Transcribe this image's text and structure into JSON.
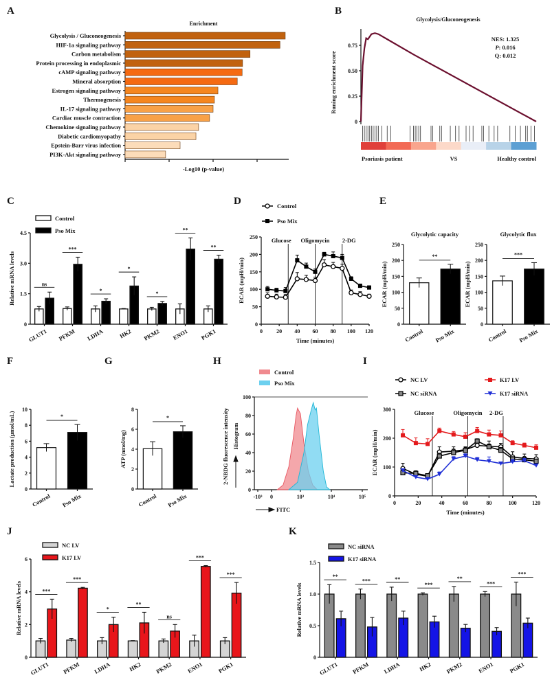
{
  "panels": [
    "A",
    "B",
    "C",
    "D",
    "E",
    "F",
    "G",
    "H",
    "I",
    "J",
    "K"
  ],
  "chart_data": [
    {
      "panel": "A",
      "type": "bar",
      "orientation": "horizontal",
      "title": "Enrichment",
      "xlabel": "-Log10 (p-value)",
      "ylabel": "",
      "categories": [
        "Glycolysis / Gluconeogenesis",
        "HIF-1a signaling pathway",
        "Carbon metabolism",
        "Protein processing in endoplasmic",
        "cAMP signaling pathway",
        "Mineral absorption",
        "Estrogen signaling pathway",
        "Thermogenesis",
        "IL-17 signaling pathway",
        "Cardiac muscle contraction",
        "Chemokine signaling pathway",
        "Diabetic cardiomyopathy",
        "Epstein-Barr virus infection",
        "PI3K-Akt signaling pathway"
      ],
      "values": [
        3.64,
        3.52,
        2.84,
        2.67,
        2.66,
        2.55,
        2.11,
        2.03,
        2.0,
        1.92,
        1.67,
        1.61,
        1.25,
        0.92
      ],
      "colors": [
        "#c1620f",
        "#c1620f",
        "#c1620f",
        "#c1620f",
        "#f56a12",
        "#f56a12",
        "#f5861f",
        "#f5861f",
        "#f8a147",
        "#f8a147",
        "#fbd3a6",
        "#fbd3a6",
        "#fcdcb9",
        "#fcdcb9"
      ],
      "xlim": [
        0,
        3.8
      ],
      "grid": false
    },
    {
      "panel": "B",
      "type": "line",
      "title": "Glycolysis/Gluconeogenesis",
      "ylabel": "Runing enrichment score",
      "yticks": [
        "0",
        "0.25",
        "0.50",
        "0.75"
      ],
      "ylim": [
        0,
        1.0
      ],
      "line_color": "#6b0f2e",
      "running_score": [
        [
          0,
          0
        ],
        [
          1,
          0.55
        ],
        [
          2,
          0.72
        ],
        [
          3,
          0.82
        ],
        [
          4,
          0.81
        ],
        [
          6,
          0.86
        ],
        [
          8,
          0.87
        ],
        [
          10,
          0.86
        ],
        [
          15,
          0.81
        ],
        [
          30,
          0.66
        ],
        [
          100,
          0
        ]
      ],
      "hit_ranks": [
        1,
        2,
        3,
        4,
        5,
        6,
        7,
        8,
        9,
        10,
        12,
        15,
        17,
        28,
        30,
        31,
        32,
        33,
        34,
        40,
        41,
        45,
        46,
        51,
        54,
        56,
        60,
        62,
        64,
        69,
        70,
        73,
        76,
        78,
        85,
        88,
        91,
        94,
        95,
        97,
        99
      ],
      "colorbar": [
        "#e0403a",
        "#f26a55",
        "#f9a58d",
        "#fcd9c9",
        "#e9eef7",
        "#b8d3e8",
        "#5c9fd3"
      ],
      "annotations": {
        "nes": "NES: 1.325",
        "p_label": "P",
        "p_value": ": 0.016",
        "q": "Q: 0.012"
      },
      "group_left": "Psoriasis patient",
      "group_mid": "VS",
      "group_right": "Healthy control"
    },
    {
      "panel": "C",
      "type": "bar",
      "ylabel": "Relative mRNA levels",
      "categories": [
        "GLUT1",
        "PFKM",
        "LDHA",
        "HK2",
        "PKM2",
        "ENO1",
        "PGK1"
      ],
      "ylim": [
        0,
        4.5
      ],
      "yticks": [
        "0",
        "1.5",
        "3.0",
        "4.5"
      ],
      "ytick_values": [
        0,
        1.5,
        3.0,
        4.5
      ],
      "series": [
        {
          "name": "Control",
          "color": "#ffffff",
          "values": [
            0.75,
            0.77,
            0.75,
            0.75,
            0.75,
            0.75,
            0.75
          ],
          "errors": [
            0.12,
            0.08,
            0.15,
            0.02,
            0.08,
            0.25,
            0.15
          ]
        },
        {
          "name": "Pso Mix",
          "color": "#000000",
          "values": [
            1.28,
            2.95,
            1.13,
            1.88,
            1.02,
            3.7,
            3.2
          ],
          "errors": [
            0.3,
            0.35,
            0.12,
            0.45,
            0.1,
            0.55,
            0.2
          ]
        }
      ],
      "significance": [
        "ns",
        "***",
        "*",
        "*",
        "*",
        "**",
        "**"
      ]
    },
    {
      "panel": "D",
      "type": "line",
      "ylabel": "ECAR (mpH/min)",
      "xlabel": "Time (minutes)",
      "xlim": [
        0,
        120
      ],
      "ylim": [
        0,
        250
      ],
      "xticks": [
        "0",
        "20",
        "40",
        "60",
        "80",
        "100",
        "120"
      ],
      "xtick_values": [
        0,
        20,
        40,
        60,
        80,
        100,
        120
      ],
      "yticks": [
        "0",
        "50",
        "100",
        "150",
        "200",
        "250"
      ],
      "ytick_values": [
        0,
        50,
        100,
        150,
        200,
        250
      ],
      "injections": [
        {
          "label": "Glucose",
          "time": 30
        },
        {
          "label": "Oligomycin",
          "time": 60
        },
        {
          "label": "2-DG",
          "time": 90
        }
      ],
      "x": [
        7,
        17,
        27,
        40,
        50,
        60,
        70,
        80,
        90,
        100,
        110,
        120
      ],
      "series": [
        {
          "name": "Control",
          "color": "#000000",
          "marker": "open-circle",
          "values": [
            80,
            78,
            77,
            130,
            128,
            125,
            170,
            165,
            160,
            90,
            85,
            80
          ],
          "errors": [
            10,
            8,
            8,
            18,
            12,
            10,
            15,
            12,
            12,
            8,
            8,
            6
          ]
        },
        {
          "name": "Pso Mix",
          "color": "#000000",
          "marker": "filled-square",
          "values": [
            100,
            97,
            95,
            183,
            165,
            150,
            200,
            195,
            190,
            130,
            110,
            105
          ],
          "errors": [
            8,
            6,
            10,
            15,
            10,
            8,
            6,
            12,
            10,
            6,
            5,
            5
          ]
        }
      ]
    },
    {
      "panel": "E",
      "type": "bar",
      "title": "Glycolytic capacity",
      "ylabel": "ECAR (mpH/min)",
      "ylim": [
        0,
        250
      ],
      "yticks": [
        "0",
        "50",
        "100",
        "150",
        "200",
        "250"
      ],
      "ytick_values": [
        0,
        50,
        100,
        150,
        200,
        250
      ],
      "categories": [
        "Control",
        "Pso Mix"
      ],
      "values": [
        130,
        173
      ],
      "errors": [
        15,
        15
      ],
      "colors": [
        "#ffffff",
        "#000000"
      ],
      "significance": "**"
    },
    {
      "panel": "E",
      "type": "bar",
      "title": "Glycolytic flux",
      "ylabel": "ECAR (mpH/min)",
      "ylim": [
        0,
        250
      ],
      "yticks": [
        "0",
        "50",
        "100",
        "150",
        "200",
        "250"
      ],
      "ytick_values": [
        0,
        50,
        100,
        150,
        200,
        250
      ],
      "categories": [
        "Control",
        "Pso Mix"
      ],
      "values": [
        136,
        173
      ],
      "errors": [
        15,
        20
      ],
      "colors": [
        "#ffffff",
        "#000000"
      ],
      "significance": "***"
    },
    {
      "panel": "F",
      "type": "bar",
      "ylabel": "Lactate production (μmol/mL)",
      "ylim": [
        0,
        10
      ],
      "yticks": [
        "0",
        "2",
        "4",
        "6",
        "8",
        "10"
      ],
      "ytick_values": [
        0,
        2,
        4,
        6,
        8,
        10
      ],
      "categories": [
        "Control",
        "Pso Mix"
      ],
      "values": [
        5.2,
        7.1
      ],
      "errors": [
        0.5,
        1.0
      ],
      "colors": [
        "#ffffff",
        "#000000"
      ],
      "significance": "*"
    },
    {
      "panel": "G",
      "type": "bar",
      "ylabel": "ATP (nmol/mg)",
      "ylim": [
        0,
        8
      ],
      "yticks": [
        "0",
        "2",
        "4",
        "6",
        "8"
      ],
      "ytick_values": [
        0,
        2,
        4,
        6,
        8
      ],
      "categories": [
        "Control",
        "Pso Mix"
      ],
      "values": [
        4.05,
        5.75
      ],
      "errors": [
        0.7,
        0.6
      ],
      "colors": [
        "#ffffff",
        "#000000"
      ],
      "significance": "*"
    },
    {
      "panel": "H",
      "type": "area",
      "ylabel": "2-NBDG fluorescence intensity",
      "ylabel2": "Histogram",
      "xlabel": "FITC",
      "ylim": [
        0,
        100
      ],
      "yticks": [
        "0",
        "20",
        "40",
        "60",
        "80",
        "100"
      ],
      "ytick_values": [
        0,
        20,
        40,
        60,
        80,
        100
      ],
      "xticks": [
        "-10³",
        "0",
        "10³",
        "10⁴",
        "10⁵"
      ],
      "xtick_values": [
        -1000,
        0,
        1000,
        10000,
        100000
      ],
      "series": [
        {
          "name": "Control",
          "color": "#e8545f",
          "fill": "#f08a8f",
          "points": [
            [
              200,
              0
            ],
            [
              400,
              5
            ],
            [
              600,
              25
            ],
            [
              750,
              55
            ],
            [
              850,
              80
            ],
            [
              900,
              88
            ],
            [
              1000,
              82
            ],
            [
              1300,
              50
            ],
            [
              1800,
              20
            ],
            [
              2500,
              5
            ],
            [
              3500,
              0
            ]
          ]
        },
        {
          "name": "Pso Mix",
          "color": "#1fb7d6",
          "fill": "#6cd0ef",
          "points": [
            [
              600,
              0
            ],
            [
              900,
              8
            ],
            [
              1300,
              40
            ],
            [
              1700,
              70
            ],
            [
              2200,
              85
            ],
            [
              2600,
              94
            ],
            [
              3000,
              86
            ],
            [
              3300,
              88
            ],
            [
              4000,
              60
            ],
            [
              5500,
              20
            ],
            [
              7000,
              3
            ],
            [
              9000,
              0
            ]
          ]
        }
      ]
    },
    {
      "panel": "I",
      "type": "line",
      "ylabel": "ECAR (mpH/min)",
      "xlabel": "Time (minutes)",
      "xlim": [
        0,
        120
      ],
      "ylim": [
        0,
        300
      ],
      "xticks": [
        "0",
        "20",
        "40",
        "60",
        "80",
        "100",
        "120"
      ],
      "xtick_values": [
        0,
        20,
        40,
        60,
        80,
        100,
        120
      ],
      "yticks": [
        "0",
        "100",
        "200",
        "300"
      ],
      "ytick_values": [
        0,
        100,
        200,
        300
      ],
      "injections": [
        {
          "label": "Glucose",
          "time": 32
        },
        {
          "label": "Oligomycin",
          "time": 62
        },
        {
          "label": "2-DG",
          "time": 92
        }
      ],
      "x": [
        7,
        18,
        28,
        38,
        50,
        60,
        70,
        80,
        90,
        100,
        110,
        120
      ],
      "series": [
        {
          "name": "NC LV",
          "color": "#000000",
          "marker": "open-circle",
          "values": [
            95,
            75,
            68,
            152,
            155,
            160,
            175,
            172,
            170,
            135,
            130,
            128
          ],
          "errors": [
            18,
            12,
            8,
            18,
            15,
            10,
            12,
            18,
            12,
            18,
            15,
            15
          ]
        },
        {
          "name": "K17 LV",
          "color": "#e41a1c",
          "marker": "filled-square",
          "values": [
            210,
            183,
            180,
            225,
            213,
            205,
            225,
            213,
            210,
            183,
            175,
            167
          ],
          "errors": [
            20,
            18,
            18,
            10,
            10,
            14,
            12,
            15,
            15,
            8,
            8,
            10
          ]
        },
        {
          "name": "NC siRNA",
          "color": "#000000",
          "marker": "gray-square",
          "values": [
            80,
            78,
            70,
            138,
            150,
            158,
            190,
            170,
            158,
            128,
            125,
            120
          ],
          "errors": [
            8,
            8,
            6,
            10,
            12,
            10,
            8,
            10,
            10,
            8,
            8,
            8
          ]
        },
        {
          "name": "K17 siRNA",
          "color": "#1f2fd6",
          "marker": "filled-triangle-down",
          "values": [
            88,
            65,
            58,
            75,
            128,
            138,
            125,
            120,
            112,
            118,
            122,
            105
          ],
          "errors": [
            6,
            5,
            5,
            8,
            8,
            8,
            8,
            15,
            5,
            8,
            8,
            6
          ]
        }
      ]
    },
    {
      "panel": "J",
      "type": "bar",
      "ylabel": "Relative mRNA levels",
      "categories": [
        "GLUT1",
        "PFKM",
        "LDHA",
        "HK2",
        "PKM2",
        "ENO1",
        "PGK1"
      ],
      "ylim": [
        0,
        6
      ],
      "yticks": [
        "0",
        "2",
        "4",
        "6"
      ],
      "ytick_values": [
        0,
        2,
        4,
        6
      ],
      "series": [
        {
          "name": "NC LV",
          "color": "#d4d4d4",
          "values": [
            1.0,
            1.05,
            1.0,
            1.0,
            1.0,
            1.0,
            1.0
          ],
          "errors": [
            0.15,
            0.1,
            0.2,
            0.02,
            0.12,
            0.35,
            0.2
          ]
        },
        {
          "name": "K17 LV",
          "color": "#e8161b",
          "values": [
            2.95,
            4.22,
            2.0,
            2.1,
            1.6,
            5.55,
            3.92
          ],
          "errors": [
            0.6,
            0.05,
            0.45,
            0.65,
            0.4,
            0.05,
            0.65
          ]
        }
      ],
      "significance": [
        "***",
        "***",
        "*",
        "**",
        "ns",
        "***",
        "***"
      ]
    },
    {
      "panel": "K",
      "type": "bar",
      "ylabel": "Relative mRNA levels",
      "categories": [
        "GLUT1",
        "PFKM",
        "LDHA",
        "HK2",
        "PKM2",
        "ENO1",
        "PGK1"
      ],
      "ylim": [
        0,
        1.5
      ],
      "yticks": [
        "0",
        "0.5",
        "1.0",
        "1.5"
      ],
      "ytick_values": [
        0,
        0.5,
        1.0,
        1.5
      ],
      "series": [
        {
          "name": "NC siRNA",
          "color": "#8a8a8a",
          "values": [
            1.0,
            1.0,
            1.0,
            1.0,
            1.0,
            1.0,
            1.0
          ],
          "errors": [
            0.15,
            0.08,
            0.11,
            0.02,
            0.12,
            0.04,
            0.19
          ]
        },
        {
          "name": "K17 siRNA",
          "color": "#1414e6",
          "values": [
            0.61,
            0.48,
            0.62,
            0.56,
            0.46,
            0.41,
            0.54
          ],
          "errors": [
            0.12,
            0.15,
            0.11,
            0.09,
            0.06,
            0.06,
            0.08
          ]
        }
      ],
      "significance": [
        "**",
        "***",
        "**",
        "***",
        "**",
        "***",
        "***"
      ]
    }
  ]
}
